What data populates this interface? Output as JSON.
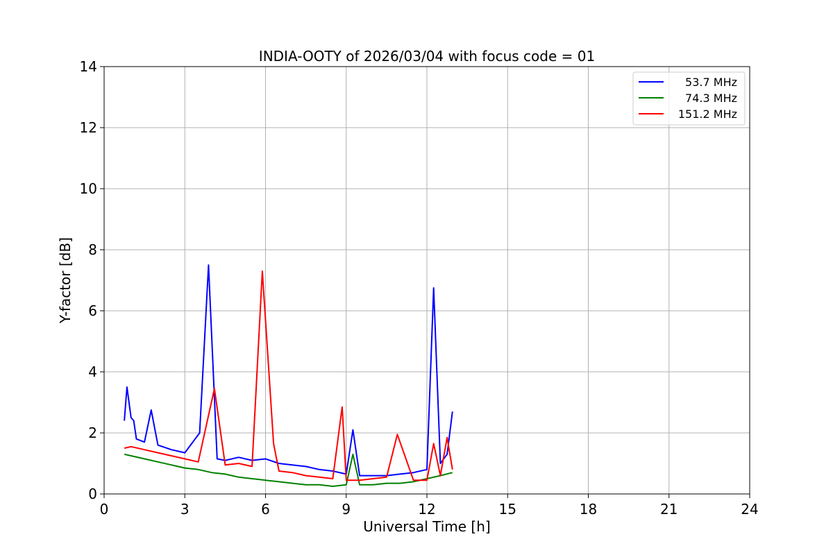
{
  "chart_data": {
    "type": "line",
    "title": "INDIA-OOTY of 2026/03/04 with focus code = 01",
    "xlabel": "Universal Time [h]",
    "ylabel": "Y-factor [dB]",
    "xlim": [
      0,
      24
    ],
    "ylim": [
      0,
      14
    ],
    "xticks": [
      0,
      3,
      6,
      9,
      12,
      15,
      18,
      21,
      24
    ],
    "yticks": [
      0,
      2,
      4,
      6,
      8,
      10,
      12,
      14
    ],
    "grid": true,
    "legend_position": "top-right",
    "series": [
      {
        "name": "53.7 MHz",
        "color": "#0000ff",
        "x": [
          0.75,
          0.85,
          1.0,
          1.1,
          1.2,
          1.5,
          1.75,
          2.0,
          2.5,
          3.0,
          3.55,
          3.88,
          4.2,
          4.5,
          5.0,
          5.5,
          6.0,
          6.5,
          7.0,
          7.5,
          8.0,
          8.5,
          9.0,
          9.25,
          9.5,
          10.0,
          10.5,
          11.0,
          11.5,
          12.0,
          12.25,
          12.5,
          12.75,
          12.95
        ],
        "y": [
          2.4,
          3.5,
          2.5,
          2.4,
          1.8,
          1.7,
          2.75,
          1.6,
          1.45,
          1.35,
          2.0,
          7.5,
          1.15,
          1.1,
          1.2,
          1.1,
          1.15,
          1.0,
          0.95,
          0.9,
          0.8,
          0.75,
          0.65,
          2.1,
          0.6,
          0.6,
          0.6,
          0.65,
          0.7,
          0.8,
          6.75,
          1.0,
          1.3,
          2.7
        ]
      },
      {
        "name": "74.3 MHz",
        "color": "#008000",
        "x": [
          0.75,
          1.0,
          1.5,
          2.0,
          2.5,
          3.0,
          3.5,
          4.0,
          4.5,
          5.0,
          5.5,
          6.0,
          6.5,
          7.0,
          7.5,
          8.0,
          8.5,
          9.0,
          9.25,
          9.5,
          10.0,
          10.5,
          11.0,
          11.5,
          12.0,
          12.5,
          12.95
        ],
        "y": [
          1.3,
          1.25,
          1.15,
          1.05,
          0.95,
          0.85,
          0.8,
          0.7,
          0.65,
          0.55,
          0.5,
          0.45,
          0.4,
          0.35,
          0.3,
          0.3,
          0.25,
          0.3,
          1.3,
          0.3,
          0.3,
          0.35,
          0.35,
          0.4,
          0.5,
          0.6,
          0.7
        ]
      },
      {
        "name": "151.2 MHz",
        "color": "#ff0000",
        "x": [
          0.75,
          1.0,
          1.5,
          2.0,
          2.5,
          3.0,
          3.5,
          4.1,
          4.5,
          5.0,
          5.5,
          5.88,
          6.3,
          6.5,
          7.0,
          7.5,
          8.0,
          8.5,
          8.85,
          9.0,
          9.5,
          10.0,
          10.5,
          10.9,
          11.5,
          12.0,
          12.25,
          12.5,
          12.75,
          12.95
        ],
        "y": [
          1.5,
          1.55,
          1.45,
          1.35,
          1.25,
          1.15,
          1.05,
          3.45,
          0.95,
          1.0,
          0.9,
          7.3,
          1.65,
          0.75,
          0.7,
          0.6,
          0.55,
          0.5,
          2.85,
          0.45,
          0.45,
          0.5,
          0.55,
          1.95,
          0.45,
          0.45,
          1.65,
          0.6,
          1.85,
          0.8
        ]
      }
    ]
  }
}
